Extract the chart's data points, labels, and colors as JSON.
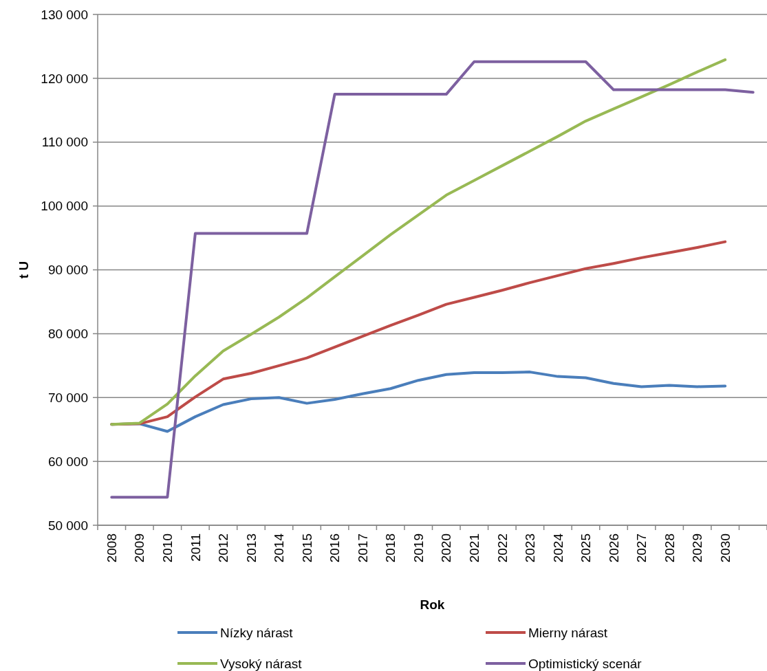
{
  "chart_data": {
    "type": "line",
    "xlabel": "Rok",
    "ylabel": "t U",
    "categories": [
      "2008",
      "2009",
      "2010",
      "2011",
      "2012",
      "2013",
      "2014",
      "2015",
      "2016",
      "2017",
      "2018",
      "2019",
      "2020",
      "2021",
      "2022",
      "2023",
      "2024",
      "2025",
      "2026",
      "2027",
      "2028",
      "2029",
      "2030",
      null
    ],
    "series": [
      {
        "name": "Nízky nárast",
        "color": "#4a7ebb",
        "values": [
          65800,
          65900,
          64700,
          67000,
          68900,
          69800,
          70000,
          69100,
          69700,
          70600,
          71400,
          72700,
          73600,
          73900,
          73900,
          74000,
          73300,
          73100,
          72200,
          71700,
          71900,
          71700,
          71800,
          null
        ]
      },
      {
        "name": "Mierny nárast",
        "color": "#be4b48",
        "values": [
          65800,
          65900,
          67000,
          70100,
          72900,
          73800,
          75000,
          76200,
          77900,
          79600,
          81300,
          82900,
          84600,
          85700,
          86800,
          88000,
          89100,
          90200,
          91000,
          91900,
          92700,
          93500,
          94400,
          null
        ]
      },
      {
        "name": "Vysoký nárast",
        "color": "#98b954",
        "values": [
          65800,
          66000,
          69000,
          73400,
          77300,
          79900,
          82600,
          85600,
          88900,
          92200,
          95500,
          98600,
          101700,
          104000,
          106300,
          108600,
          110900,
          113300,
          115200,
          117100,
          119000,
          121000,
          122900,
          null
        ]
      },
      {
        "name": "Optimistický scenár",
        "color": "#7d60a0",
        "values": [
          54400,
          54400,
          54400,
          95700,
          95700,
          95700,
          95700,
          95700,
          117500,
          117500,
          117500,
          117500,
          117500,
          122600,
          122600,
          122600,
          122600,
          122600,
          118200,
          118200,
          118200,
          118200,
          118200,
          117800
        ]
      }
    ],
    "ylim": [
      50000,
      130000
    ],
    "yticks": [
      {
        "value": 50000,
        "label": "50 000"
      },
      {
        "value": 60000,
        "label": "60 000"
      },
      {
        "value": 70000,
        "label": "70 000"
      },
      {
        "value": 80000,
        "label": "80 000"
      },
      {
        "value": 90000,
        "label": "90 000"
      },
      {
        "value": 100000,
        "label": "100 000"
      },
      {
        "value": 110000,
        "label": "110 000"
      },
      {
        "value": 120000,
        "label": "120 000"
      },
      {
        "value": 130000,
        "label": "130 000"
      }
    ],
    "grid": "y",
    "legend": "bottom",
    "marker": "none",
    "line_style": "solid"
  }
}
